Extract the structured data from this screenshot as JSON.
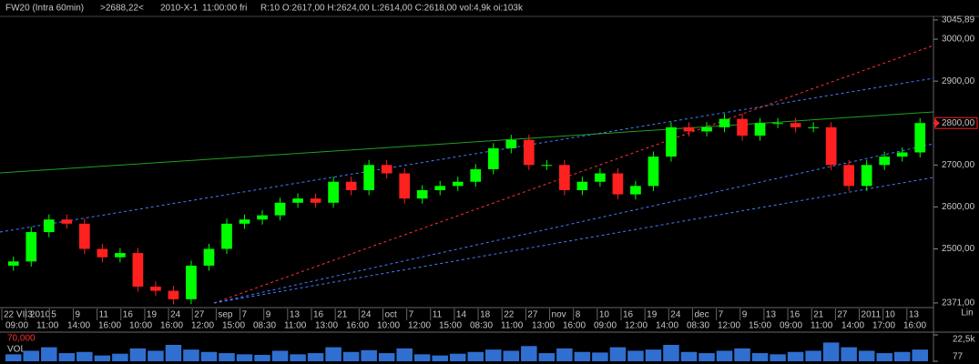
{
  "header": {
    "symbol": "FW20 (Intra 60min)",
    "cursor_price": ">2688,22<",
    "date": "2010-X-1",
    "time": "11:00:00 fri",
    "ohlc": "R:10 O:2617,00 H:2624,00 L:2614,00 C:2618,00 vol:4,9k oi:103k"
  },
  "chart_data": {
    "type": "candlestick",
    "up_color": "#00ff00",
    "down_color": "#ff2020",
    "open": [
      2460,
      2470,
      2540,
      2570,
      2560,
      2500,
      2480,
      2490,
      2410,
      2400,
      2380,
      2460,
      2500,
      2560,
      2570,
      2580,
      2610,
      2620,
      2610,
      2660,
      2640,
      2700,
      2680,
      2620,
      2640,
      2650,
      2660,
      2690,
      2740,
      2760,
      2700,
      2700,
      2640,
      2660,
      2680,
      2630,
      2650,
      2720,
      2790,
      2780,
      2790,
      2810,
      2770,
      2800,
      2800,
      2790,
      2790,
      2700,
      2650,
      2700,
      2720,
      2730
    ],
    "high": [
      2482,
      2552,
      2582,
      2582,
      2572,
      2512,
      2502,
      2502,
      2422,
      2412,
      2472,
      2512,
      2572,
      2582,
      2592,
      2622,
      2632,
      2632,
      2672,
      2672,
      2712,
      2712,
      2692,
      2652,
      2662,
      2672,
      2702,
      2752,
      2772,
      2772,
      2712,
      2712,
      2672,
      2692,
      2692,
      2662,
      2732,
      2802,
      2802,
      2802,
      2822,
      2822,
      2812,
      2812,
      2812,
      2802,
      2802,
      2712,
      2712,
      2732,
      2742,
      2812
    ],
    "low": [
      2448,
      2458,
      2528,
      2548,
      2488,
      2468,
      2468,
      2398,
      2388,
      2368,
      2368,
      2448,
      2488,
      2548,
      2558,
      2568,
      2598,
      2598,
      2598,
      2628,
      2628,
      2668,
      2608,
      2608,
      2628,
      2638,
      2648,
      2678,
      2728,
      2688,
      2688,
      2628,
      2628,
      2648,
      2618,
      2618,
      2638,
      2708,
      2768,
      2768,
      2778,
      2758,
      2758,
      2788,
      2778,
      2778,
      2688,
      2638,
      2638,
      2688,
      2708,
      2718
    ],
    "close": [
      2470,
      2540,
      2570,
      2560,
      2500,
      2480,
      2490,
      2410,
      2400,
      2380,
      2460,
      2500,
      2560,
      2570,
      2580,
      2610,
      2620,
      2610,
      2660,
      2640,
      2700,
      2680,
      2620,
      2640,
      2650,
      2660,
      2690,
      2740,
      2760,
      2700,
      2700,
      2640,
      2660,
      2680,
      2630,
      2650,
      2720,
      2790,
      2780,
      2790,
      2810,
      2770,
      2800,
      2800,
      2790,
      2790,
      2700,
      2650,
      2700,
      2720,
      2730,
      2800
    ],
    "ylim": [
      2360,
      3050
    ],
    "yticks": [
      {
        "value": 2371,
        "label": "2371,00"
      },
      {
        "value": 2500,
        "label": "2500,00"
      },
      {
        "value": 2600,
        "label": "2600,00"
      },
      {
        "value": 2700,
        "label": "2700,00"
      },
      {
        "value": 2800,
        "label": "2800,00"
      },
      {
        "value": 2900,
        "label": "2900,00"
      },
      {
        "value": 3000,
        "label": "3000,00"
      },
      {
        "value": 3045.89,
        "label": "3045,89"
      }
    ],
    "price_marker": {
      "value": 2800,
      "label": "2800,00"
    },
    "scale_label": "Lin",
    "x_labels_top": [
      "22 VII 2010",
      "3",
      "5",
      "9",
      "11",
      "16",
      "19",
      "24",
      "27",
      "sep",
      "7",
      "9",
      "13",
      "16",
      "21",
      "24",
      "oct",
      "7",
      "11",
      "14",
      "18",
      "22",
      "27",
      "nov",
      "8",
      "10",
      "16",
      "19",
      "24",
      "dec",
      "7",
      "9",
      "13",
      "16",
      "21",
      "27",
      "2011",
      "10",
      "13"
    ],
    "x_labels_bottom": [
      "09:00",
      "11:00",
      "14:00",
      "16:00",
      "10:00",
      "16:00",
      "12:00",
      "15:00",
      "08:30",
      "11:00",
      "13:00",
      "16:00",
      "10:00",
      "12:00",
      "15:00",
      "08:30",
      "11:00",
      "13:00",
      "16:00",
      "09:00",
      "12:00",
      "14:00",
      "08:30",
      "12:00",
      "15:00",
      "09:00",
      "11:00",
      "14:00",
      "17:00",
      "16:00"
    ],
    "volume": {
      "name": "VOL",
      "indicator_label": "70,000",
      "color": "#2f6fd0",
      "values": [
        6000,
        9000,
        12000,
        7000,
        8000,
        5000,
        6500,
        11000,
        9000,
        14000,
        10000,
        8000,
        7000,
        6000,
        5500,
        9000,
        6000,
        7000,
        12000,
        8000,
        9500,
        7000,
        11000,
        6000,
        5000,
        6500,
        8000,
        10000,
        9000,
        13000,
        7000,
        11000,
        8000,
        7500,
        12000,
        9000,
        10000,
        14000,
        8000,
        7000,
        9000,
        11000,
        7000,
        6000,
        8000,
        9000,
        16000,
        12000,
        9000,
        7000,
        8000,
        10000
      ],
      "ylim": [
        77,
        22500
      ],
      "yticks": [
        {
          "value": 77,
          "label": "77"
        },
        {
          "value": 22500,
          "label": "22,5k"
        }
      ]
    }
  }
}
